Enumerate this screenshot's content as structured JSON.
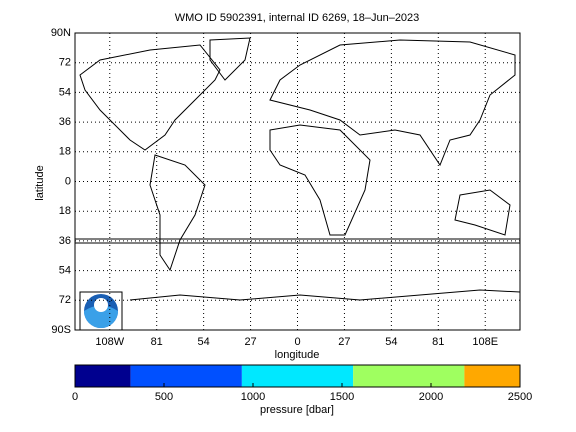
{
  "chart_data": {
    "type": "map",
    "title": "WMO ID 5902391, internal ID 6269, 18–Jun–2023",
    "x_label": "longitude",
    "y_label": "latitude",
    "xlim": [
      -128,
      128
    ],
    "ylim": [
      -90,
      90
    ],
    "xticks": [
      {
        "value": -108,
        "label": "108W"
      },
      {
        "value": -81,
        "label": "81"
      },
      {
        "value": -54,
        "label": "54"
      },
      {
        "value": -27,
        "label": "27"
      },
      0,
      27,
      54,
      81,
      {
        "value": 108,
        "label": "108E"
      }
    ],
    "yticks": [
      {
        "value": 90,
        "label": "90N"
      },
      72,
      54,
      36,
      18,
      0,
      {
        "value": -18,
        "label": "18"
      },
      {
        "value": -36,
        "label": "36"
      },
      {
        "value": -54,
        "label": "54"
      },
      {
        "value": -72,
        "label": "72"
      },
      {
        "value": -90,
        "label": "90S"
      }
    ],
    "grid": true,
    "colorbar": {
      "label": "pressure [dbar]",
      "lim": [
        0,
        2500
      ],
      "ticks": [
        0,
        500,
        1000,
        1500,
        2000,
        2500
      ],
      "bounds": [
        0,
        312.5,
        937.5,
        1562.5,
        2187.5,
        2500
      ],
      "colors": [
        "#00008f",
        "#0050ff",
        "#00e8ff",
        "#9fff60",
        "#ffa800"
      ]
    }
  }
}
